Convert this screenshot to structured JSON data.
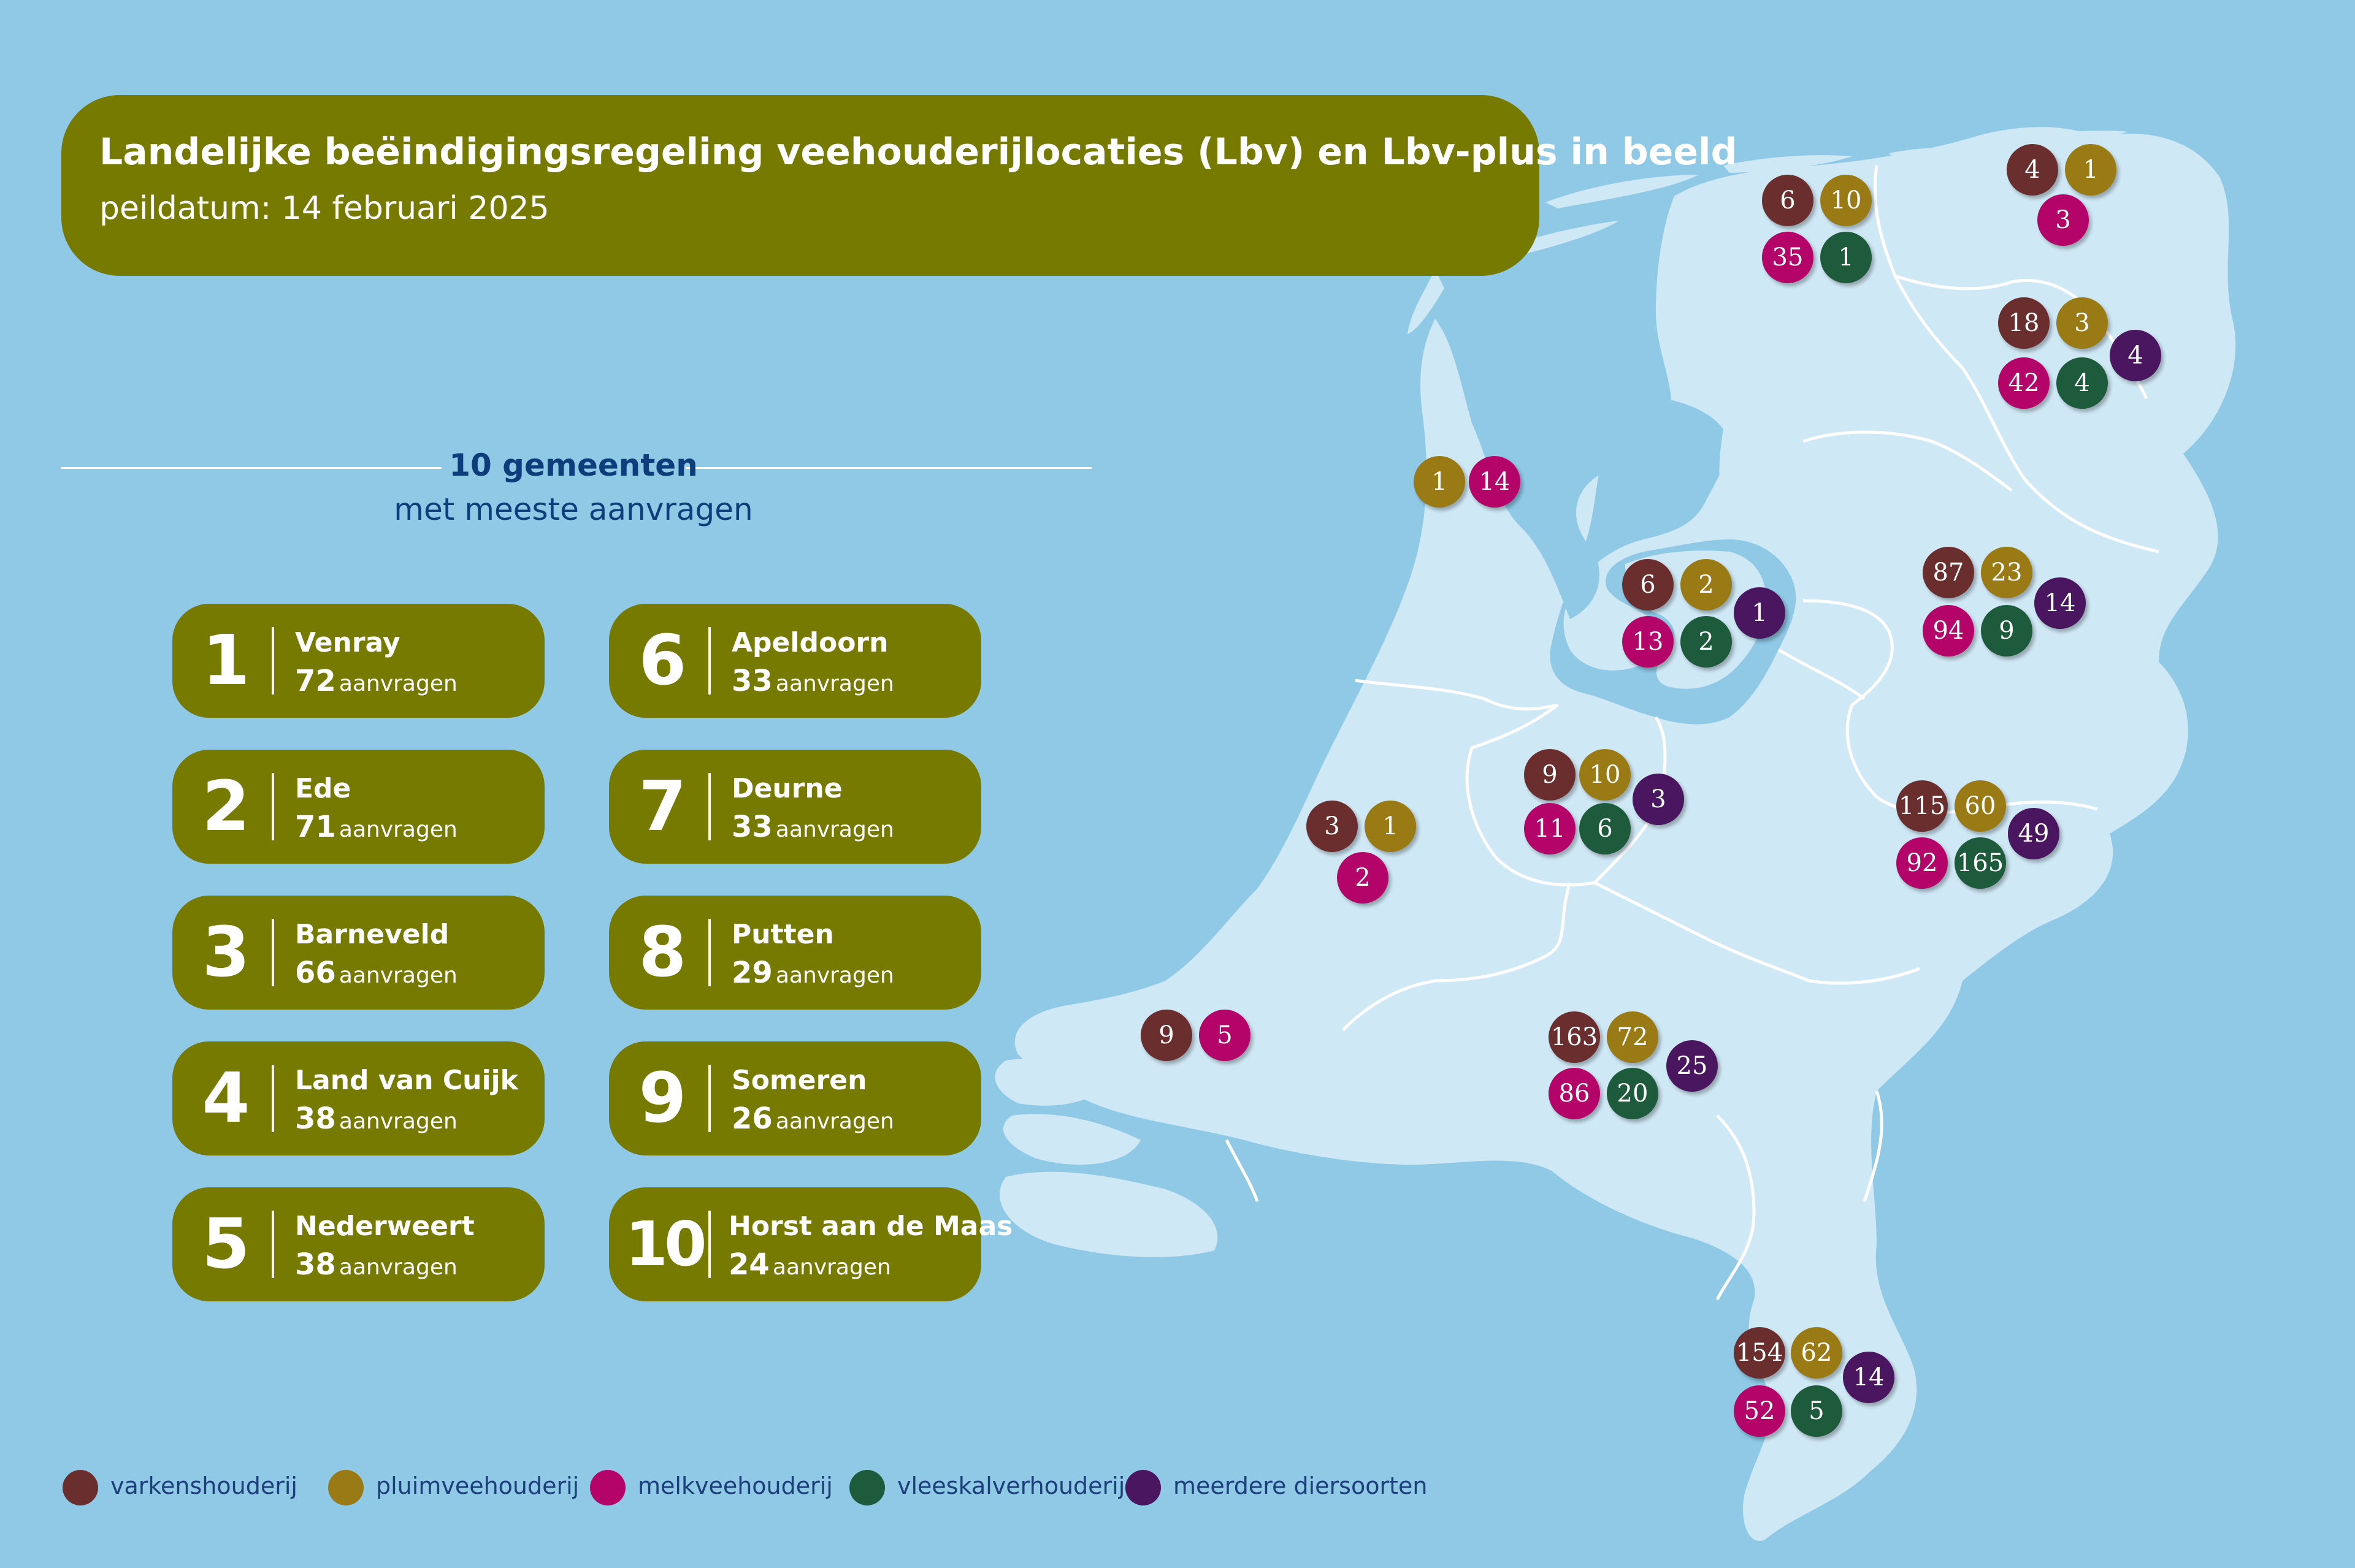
{
  "title": "Landelijke beëindigingsregeling veehouderijlocaties (Lbv) en Lbv-plus in beeld",
  "subtitle": "peildatum: 14 februari 2025",
  "section": {
    "title": "10 gemeenten",
    "subtitle": "met meeste aanvragen",
    "unit": "aanvragen"
  },
  "colors": {
    "water": "#8fc9e6",
    "land": "#cfe8f5",
    "panel": "#777a00",
    "varkenshouderij": "#6b2e2e",
    "pluimveehouderij": "#9a7a14",
    "melkveehouderij": "#b4046a",
    "vleeskalverhouderij": "#1e5a3c",
    "meerdere_diersoorten": "#4a1660"
  },
  "rankings": [
    {
      "rank": "1",
      "name": "Venray",
      "count": "72"
    },
    {
      "rank": "2",
      "name": "Ede",
      "count": "71"
    },
    {
      "rank": "3",
      "name": "Barneveld",
      "count": "66"
    },
    {
      "rank": "4",
      "name": "Land van Cuijk",
      "count": "38"
    },
    {
      "rank": "5",
      "name": "Nederweert",
      "count": "38"
    },
    {
      "rank": "6",
      "name": "Apeldoorn",
      "count": "33"
    },
    {
      "rank": "7",
      "name": "Deurne",
      "count": "33"
    },
    {
      "rank": "8",
      "name": "Putten",
      "count": "29"
    },
    {
      "rank": "9",
      "name": "Someren",
      "count": "26"
    },
    {
      "rank": "10",
      "name": "Horst aan de Maas",
      "count": "24"
    }
  ],
  "legend": [
    {
      "key": "varkenshouderij",
      "label": "varkenshouderij"
    },
    {
      "key": "pluimveehouderij",
      "label": "pluimveehouderij"
    },
    {
      "key": "melkveehouderij",
      "label": "melkveehouderij"
    },
    {
      "key": "vleeskalverhouderij",
      "label": "vleeskalverhouderij"
    },
    {
      "key": "meerdere_diersoorten",
      "label": "meerdere diersoorten"
    }
  ],
  "provinces": [
    {
      "name": "groningen",
      "values": {
        "varkenshouderij": "4",
        "pluimveehouderij": "1",
        "melkveehouderij": "3"
      }
    },
    {
      "name": "friesland",
      "values": {
        "varkenshouderij": "6",
        "pluimveehouderij": "10",
        "melkveehouderij": "35",
        "vleeskalverhouderij": "1"
      }
    },
    {
      "name": "drenthe",
      "values": {
        "varkenshouderij": "18",
        "pluimveehouderij": "3",
        "melkveehouderij": "42",
        "vleeskalverhouderij": "4",
        "meerdere_diersoorten": "4"
      }
    },
    {
      "name": "noord-holland",
      "values": {
        "pluimveehouderij": "1",
        "melkveehouderij": "14"
      }
    },
    {
      "name": "flevoland",
      "values": {
        "varkenshouderij": "6",
        "pluimveehouderij": "2",
        "melkveehouderij": "13",
        "vleeskalverhouderij": "2",
        "meerdere_diersoorten": "1"
      }
    },
    {
      "name": "overijssel",
      "values": {
        "varkenshouderij": "87",
        "pluimveehouderij": "23",
        "melkveehouderij": "94",
        "vleeskalverhouderij": "9",
        "meerdere_diersoorten": "14"
      }
    },
    {
      "name": "utrecht",
      "values": {
        "varkenshouderij": "9",
        "pluimveehouderij": "10",
        "melkveehouderij": "11",
        "vleeskalverhouderij": "6",
        "meerdere_diersoorten": "3"
      }
    },
    {
      "name": "zuid-holland",
      "values": {
        "varkenshouderij": "3",
        "pluimveehouderij": "1",
        "melkveehouderij": "2"
      }
    },
    {
      "name": "gelderland",
      "values": {
        "varkenshouderij": "115",
        "pluimveehouderij": "60",
        "melkveehouderij": "92",
        "vleeskalverhouderij": "165",
        "meerdere_diersoorten": "49"
      }
    },
    {
      "name": "zeeland",
      "values": {
        "varkenshouderij": "9",
        "melkveehouderij": "5"
      }
    },
    {
      "name": "noord-brabant",
      "values": {
        "varkenshouderij": "163",
        "pluimveehouderij": "72",
        "melkveehouderij": "86",
        "vleeskalverhouderij": "20",
        "meerdere_diersoorten": "25"
      }
    },
    {
      "name": "limburg",
      "values": {
        "varkenshouderij": "154",
        "pluimveehouderij": "62",
        "melkveehouderij": "52",
        "vleeskalverhouderij": "5",
        "meerdere_diersoorten": "14"
      }
    }
  ]
}
